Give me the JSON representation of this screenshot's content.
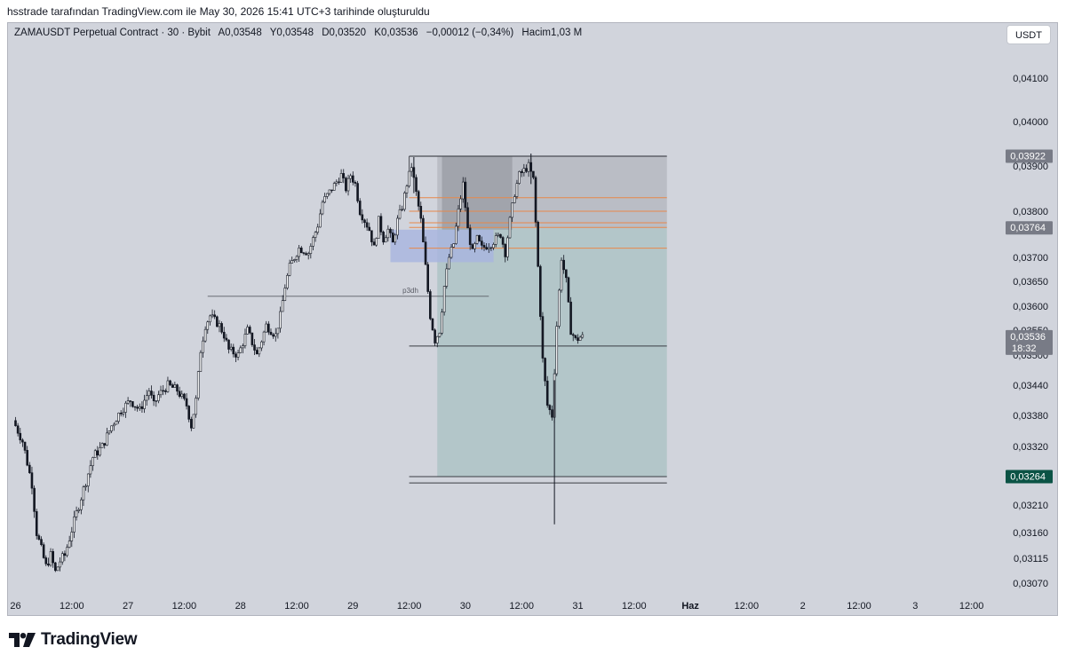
{
  "caption": "hsstrade tarafından TradingView.com ile May 30, 2026 15:41 UTC+3 tarihinde oluşturuldu",
  "legend": {
    "symbol": "ZAMAUSDT Perpetual Contract · 30 · Bybit",
    "open_label": "A",
    "open": "0,03548",
    "high_label": "Y",
    "high": "0,03548",
    "low_label": "D",
    "low": "0,03520",
    "close_label": "K",
    "close": "0,03536",
    "change": "−0,00012 (−0,34%)",
    "volume_label": "Hacim",
    "volume": "1,03 M"
  },
  "currency_button": "USDT",
  "brand": "TradingView",
  "chart_data": {
    "type": "candlestick",
    "symbol": "ZAMAUSDT",
    "interval": "30",
    "exchange": "Bybit",
    "price_ticks": [
      {
        "value": 0.041,
        "label": "0,04100"
      },
      {
        "value": 0.04,
        "label": "0,04000"
      },
      {
        "value": 0.039,
        "label": "0,03900"
      },
      {
        "value": 0.038,
        "label": "0,03800"
      },
      {
        "value": 0.037,
        "label": "0,03700"
      },
      {
        "value": 0.0365,
        "label": "0,03650"
      },
      {
        "value": 0.036,
        "label": "0,03600"
      },
      {
        "value": 0.0355,
        "label": "0,03550"
      },
      {
        "value": 0.035,
        "label": "0,03500"
      },
      {
        "value": 0.0344,
        "label": "0,03440"
      },
      {
        "value": 0.0338,
        "label": "0,03380"
      },
      {
        "value": 0.0332,
        "label": "0,03320"
      },
      {
        "value": 0.0321,
        "label": "0,03210"
      },
      {
        "value": 0.0316,
        "label": "0,03160"
      },
      {
        "value": 0.03115,
        "label": "0,03115"
      },
      {
        "value": 0.0307,
        "label": "0,03070"
      }
    ],
    "price_badges": [
      {
        "value": 0.03922,
        "label": "0,03922",
        "color": "#787b86"
      },
      {
        "value": 0.03764,
        "label": "0,03764",
        "color": "#787b86"
      },
      {
        "value": 0.03536,
        "label": "0,03536",
        "sublabel": "18:32",
        "color": "#787b86"
      },
      {
        "value": 0.03264,
        "label": "0,03264",
        "color": "#0b5345"
      }
    ],
    "time_ticks": [
      {
        "t": 0,
        "label": "26"
      },
      {
        "t": 12,
        "label": "12:00"
      },
      {
        "t": 24,
        "label": "27"
      },
      {
        "t": 36,
        "label": "12:00"
      },
      {
        "t": 48,
        "label": "28"
      },
      {
        "t": 60,
        "label": "12:00"
      },
      {
        "t": 72,
        "label": "29"
      },
      {
        "t": 84,
        "label": "12:00"
      },
      {
        "t": 96,
        "label": "30"
      },
      {
        "t": 108,
        "label": "12:00"
      },
      {
        "t": 120,
        "label": "31"
      },
      {
        "t": 132,
        "label": "12:00"
      },
      {
        "t": 144,
        "label": "Haz",
        "bold": true
      },
      {
        "t": 156,
        "label": "12:00"
      },
      {
        "t": 168,
        "label": "2"
      },
      {
        "t": 180,
        "label": "12:00"
      },
      {
        "t": 192,
        "label": "3"
      },
      {
        "t": 204,
        "label": "12:00"
      }
    ],
    "price_path": [
      [
        0,
        0.0337
      ],
      [
        2,
        0.0333
      ],
      [
        4,
        0.0325
      ],
      [
        5,
        0.0316
      ],
      [
        6,
        0.0313
      ],
      [
        7,
        0.031
      ],
      [
        8,
        0.0312
      ],
      [
        9,
        0.0309
      ],
      [
        10,
        0.0311
      ],
      [
        11,
        0.0312
      ],
      [
        13,
        0.0318
      ],
      [
        15,
        0.0324
      ],
      [
        17,
        0.033
      ],
      [
        19,
        0.0332
      ],
      [
        21,
        0.0336
      ],
      [
        23,
        0.0339
      ],
      [
        25,
        0.0341
      ],
      [
        27,
        0.0339
      ],
      [
        29,
        0.0343
      ],
      [
        30,
        0.034
      ],
      [
        31,
        0.0342
      ],
      [
        33,
        0.0344
      ],
      [
        35,
        0.0343
      ],
      [
        37,
        0.034
      ],
      [
        38,
        0.0336
      ],
      [
        39,
        0.0341
      ],
      [
        40,
        0.0351
      ],
      [
        41,
        0.0356
      ],
      [
        42,
        0.0358
      ],
      [
        44,
        0.0356
      ],
      [
        45,
        0.0354
      ],
      [
        46,
        0.0351
      ],
      [
        48,
        0.035
      ],
      [
        50,
        0.0355
      ],
      [
        52,
        0.035
      ],
      [
        54,
        0.0356
      ],
      [
        56,
        0.0354
      ],
      [
        57,
        0.0358
      ],
      [
        58,
        0.0364
      ],
      [
        59,
        0.0368
      ],
      [
        60,
        0.037
      ],
      [
        61,
        0.0372
      ],
      [
        63,
        0.0371
      ],
      [
        65,
        0.0377
      ],
      [
        66,
        0.0382
      ],
      [
        68,
        0.0385
      ],
      [
        70,
        0.0388
      ],
      [
        71,
        0.0385
      ],
      [
        72,
        0.0388
      ],
      [
        73,
        0.0386
      ],
      [
        74,
        0.038
      ],
      [
        76,
        0.0376
      ],
      [
        77,
        0.0372
      ],
      [
        78,
        0.0378
      ],
      [
        79,
        0.0374
      ],
      [
        80,
        0.0376
      ],
      [
        81,
        0.0373
      ],
      [
        82,
        0.0378
      ],
      [
        83,
        0.0381
      ],
      [
        84,
        0.0386
      ],
      [
        85,
        0.039
      ],
      [
        86,
        0.0384
      ],
      [
        87,
        0.0378
      ],
      [
        88,
        0.0368
      ],
      [
        89,
        0.0358
      ],
      [
        90,
        0.0353
      ],
      [
        91,
        0.0355
      ],
      [
        92,
        0.0364
      ],
      [
        93,
        0.037
      ],
      [
        94,
        0.0373
      ],
      [
        95,
        0.038
      ],
      [
        96,
        0.0386
      ],
      [
        97,
        0.0376
      ],
      [
        98,
        0.0371
      ],
      [
        99,
        0.0374
      ],
      [
        100,
        0.0372
      ],
      [
        102,
        0.0373
      ],
      [
        104,
        0.0375
      ],
      [
        105,
        0.0371
      ],
      [
        106,
        0.0378
      ],
      [
        107,
        0.0384
      ],
      [
        108,
        0.0388
      ],
      [
        109,
        0.0389
      ],
      [
        110,
        0.039
      ],
      [
        111,
        0.0387
      ],
      [
        112,
        0.0368
      ],
      [
        113,
        0.0349
      ],
      [
        114,
        0.034
      ],
      [
        115,
        0.0338
      ],
      [
        116,
        0.0356
      ],
      [
        117,
        0.037
      ],
      [
        118,
        0.0365
      ],
      [
        119,
        0.0355
      ],
      [
        120,
        0.0353
      ],
      [
        121,
        0.03536
      ]
    ],
    "spikes": [
      {
        "t": 115,
        "low": 0.03175,
        "high": 0.0345
      },
      {
        "t": 85,
        "low": 0.0384,
        "high": 0.0392
      },
      {
        "t": 110,
        "low": 0.0386,
        "high": 0.03928
      }
    ],
    "drawings": {
      "hline_top": {
        "t1": 84,
        "t2": 139,
        "price": 0.03922
      },
      "short_box_red": {
        "t1": 90,
        "t2": 139,
        "top": 0.03922,
        "bottom": 0.03764
      },
      "short_box_green": {
        "t1": 90,
        "t2": 139,
        "top": 0.03764,
        "bottom": 0.03264
      },
      "blue_zone": {
        "t1": 80,
        "t2": 102,
        "top": 0.0376,
        "bottom": 0.0369
      },
      "dark_box": {
        "t1": 91,
        "t2": 106,
        "top": 0.03922,
        "bottom": 0.0376
      },
      "orange_lines": [
        {
          "t1": 84,
          "t2": 139,
          "price": 0.0383
        },
        {
          "t1": 84,
          "t2": 139,
          "price": 0.038
        },
        {
          "t1": 84,
          "t2": 139,
          "price": 0.03775
        },
        {
          "t1": 84,
          "t2": 139,
          "price": 0.03765
        },
        {
          "t1": 84,
          "t2": 139,
          "price": 0.0372
        }
      ],
      "p3dh_line": {
        "t1": 41,
        "t2": 101,
        "price": 0.0362,
        "label": "p3dh"
      },
      "hline_black1": {
        "t1": 84,
        "t2": 139,
        "price": 0.03518
      },
      "hline_black2": {
        "t1": 84,
        "t2": 139,
        "price": 0.03264
      },
      "hline_black3": {
        "t1": 84,
        "t2": 139,
        "price": 0.03252
      }
    }
  }
}
